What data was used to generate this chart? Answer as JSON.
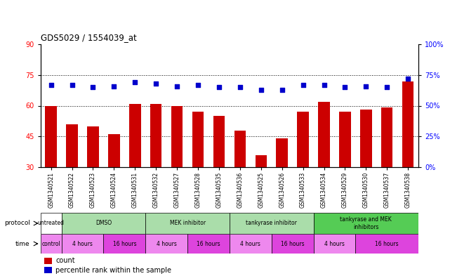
{
  "title": "GDS5029 / 1554039_at",
  "samples": [
    "GSM1340521",
    "GSM1340522",
    "GSM1340523",
    "GSM1340524",
    "GSM1340531",
    "GSM1340532",
    "GSM1340527",
    "GSM1340528",
    "GSM1340535",
    "GSM1340536",
    "GSM1340525",
    "GSM1340526",
    "GSM1340533",
    "GSM1340534",
    "GSM1340529",
    "GSM1340530",
    "GSM1340537",
    "GSM1340538"
  ],
  "bar_values": [
    60,
    51,
    50,
    46,
    61,
    61,
    60,
    57,
    55,
    48,
    36,
    44,
    57,
    62,
    57,
    58,
    59,
    72
  ],
  "dot_values": [
    67,
    67,
    65,
    66,
    69,
    68,
    66,
    67,
    65,
    65,
    63,
    63,
    67,
    67,
    65,
    66,
    65,
    72
  ],
  "bar_color": "#CC0000",
  "dot_color": "#0000CC",
  "ylim_left": [
    30,
    90
  ],
  "ylim_right": [
    0,
    100
  ],
  "yticks_left": [
    30,
    45,
    60,
    75,
    90
  ],
  "yticks_right": [
    0,
    25,
    50,
    75,
    100
  ],
  "hlines": [
    45,
    60,
    75
  ],
  "protocol_boundaries": [
    [
      0,
      1,
      "untreated",
      "#FFFFFF"
    ],
    [
      1,
      5,
      "DMSO",
      "#AADDAA"
    ],
    [
      5,
      9,
      "MEK inhibitor",
      "#AADDAA"
    ],
    [
      9,
      13,
      "tankyrase inhibitor",
      "#AADDAA"
    ],
    [
      13,
      18,
      "tankyrase and MEK\ninhibitors",
      "#55CC55"
    ]
  ],
  "time_boundaries": [
    [
      0,
      1,
      "control",
      "#EE88EE"
    ],
    [
      1,
      3,
      "4 hours",
      "#EE88EE"
    ],
    [
      3,
      5,
      "16 hours",
      "#DD44DD"
    ],
    [
      5,
      7,
      "4 hours",
      "#EE88EE"
    ],
    [
      7,
      9,
      "16 hours",
      "#DD44DD"
    ],
    [
      9,
      11,
      "4 hours",
      "#EE88EE"
    ],
    [
      11,
      13,
      "16 hours",
      "#DD44DD"
    ],
    [
      13,
      15,
      "4 hours",
      "#EE88EE"
    ],
    [
      15,
      18,
      "16 hours",
      "#DD44DD"
    ]
  ],
  "legend_items": [
    {
      "label": "count",
      "color": "#CC0000"
    },
    {
      "label": "percentile rank within the sample",
      "color": "#0000CC"
    }
  ]
}
